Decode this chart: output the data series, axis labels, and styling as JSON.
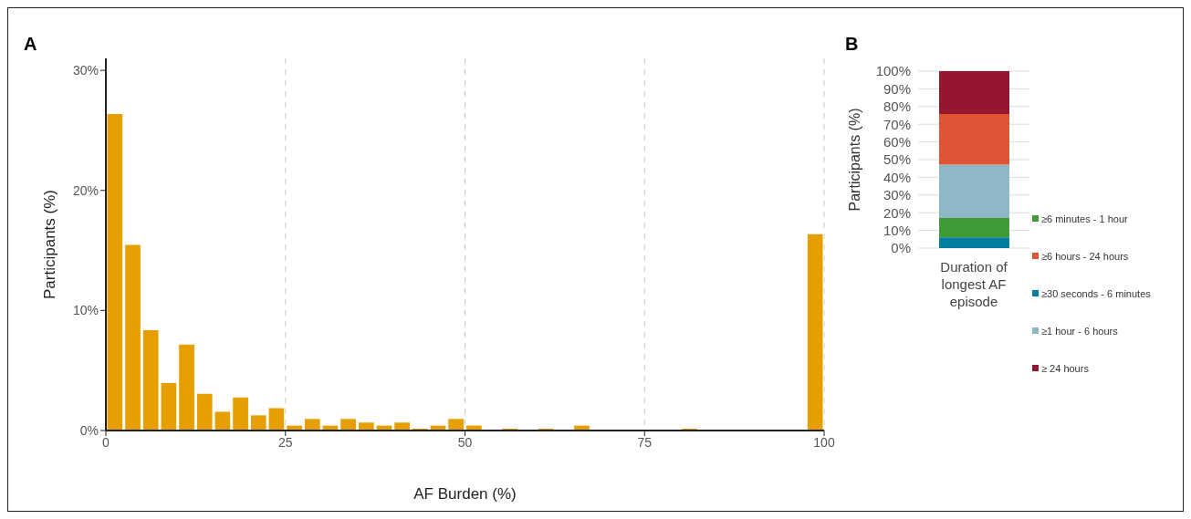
{
  "chart_data": [
    {
      "type": "histogram",
      "title": "A",
      "xlabel": "AF Burden (%)",
      "ylabel": "Participants (%)",
      "bins": [
        0,
        2.5,
        5,
        7.5,
        10,
        12.5,
        15,
        17.5,
        20,
        22.5,
        25,
        27.5,
        30,
        32.5,
        35,
        37.5,
        40,
        42.5,
        45,
        47.5,
        50,
        52.5,
        55,
        57.5,
        60,
        62.5,
        65,
        67.5,
        70,
        72.5,
        75,
        77.5,
        80,
        82.5,
        85,
        87.5,
        90,
        92.5,
        95,
        97.5,
        100
      ],
      "values": [
        26.4,
        15.5,
        8.4,
        4.0,
        7.2,
        3.1,
        1.6,
        2.8,
        1.3,
        1.9,
        0.45,
        1.0,
        0.45,
        1.0,
        0.7,
        0.45,
        0.7,
        0.2,
        0.45,
        1.0,
        0.45,
        0,
        0.2,
        0,
        0.2,
        0,
        0.45,
        0,
        0,
        0,
        0,
        0,
        0.2,
        0,
        0,
        0,
        0,
        0,
        0,
        16.4
      ],
      "color": "#e69f00",
      "xlim": [
        0,
        100
      ],
      "xticks": [
        0,
        25,
        50,
        75,
        100
      ],
      "ylim": [
        0,
        31
      ],
      "yticks": [
        {
          "value": 0,
          "label": "0%"
        },
        {
          "value": 10,
          "label": "10%"
        },
        {
          "value": 20,
          "label": "20%"
        },
        {
          "value": 30,
          "label": "30%"
        }
      ],
      "grid": "x"
    },
    {
      "type": "bar",
      "stacked": true,
      "title": "B",
      "ylabel": "Participants (%)",
      "categories": [
        "Duration of longest AF episode"
      ],
      "series": [
        {
          "name": "≥30 seconds - 6 minutes",
          "color": "#007fa3",
          "values": [
            6.1
          ]
        },
        {
          "name": "≥6 minutes - 1 hour",
          "color": "#3f9b35",
          "values": [
            10.9
          ]
        },
        {
          "name": "≥1 hour - 6 hours",
          "color": "#8fb8c6",
          "values": [
            30.2
          ]
        },
        {
          "name": "≥6 hours - 24 hours",
          "color": "#e05436",
          "values": [
            28.6
          ]
        },
        {
          "name": "≥ 24 hours",
          "color": "#95172f",
          "values": [
            24.2
          ]
        }
      ],
      "ylim": [
        0,
        100
      ],
      "yticks": [
        {
          "value": 0,
          "label": "0%"
        },
        {
          "value": 10,
          "label": "10%"
        },
        {
          "value": 20,
          "label": "20%"
        },
        {
          "value": 30,
          "label": "30%"
        },
        {
          "value": 40,
          "label": "40%"
        },
        {
          "value": 50,
          "label": "50%"
        },
        {
          "value": 60,
          "label": "60%"
        },
        {
          "value": 70,
          "label": "70%"
        },
        {
          "value": 80,
          "label": "80%"
        },
        {
          "value": 90,
          "label": "90%"
        },
        {
          "value": 100,
          "label": "100%"
        }
      ],
      "grid": "y",
      "legend": "right"
    }
  ]
}
